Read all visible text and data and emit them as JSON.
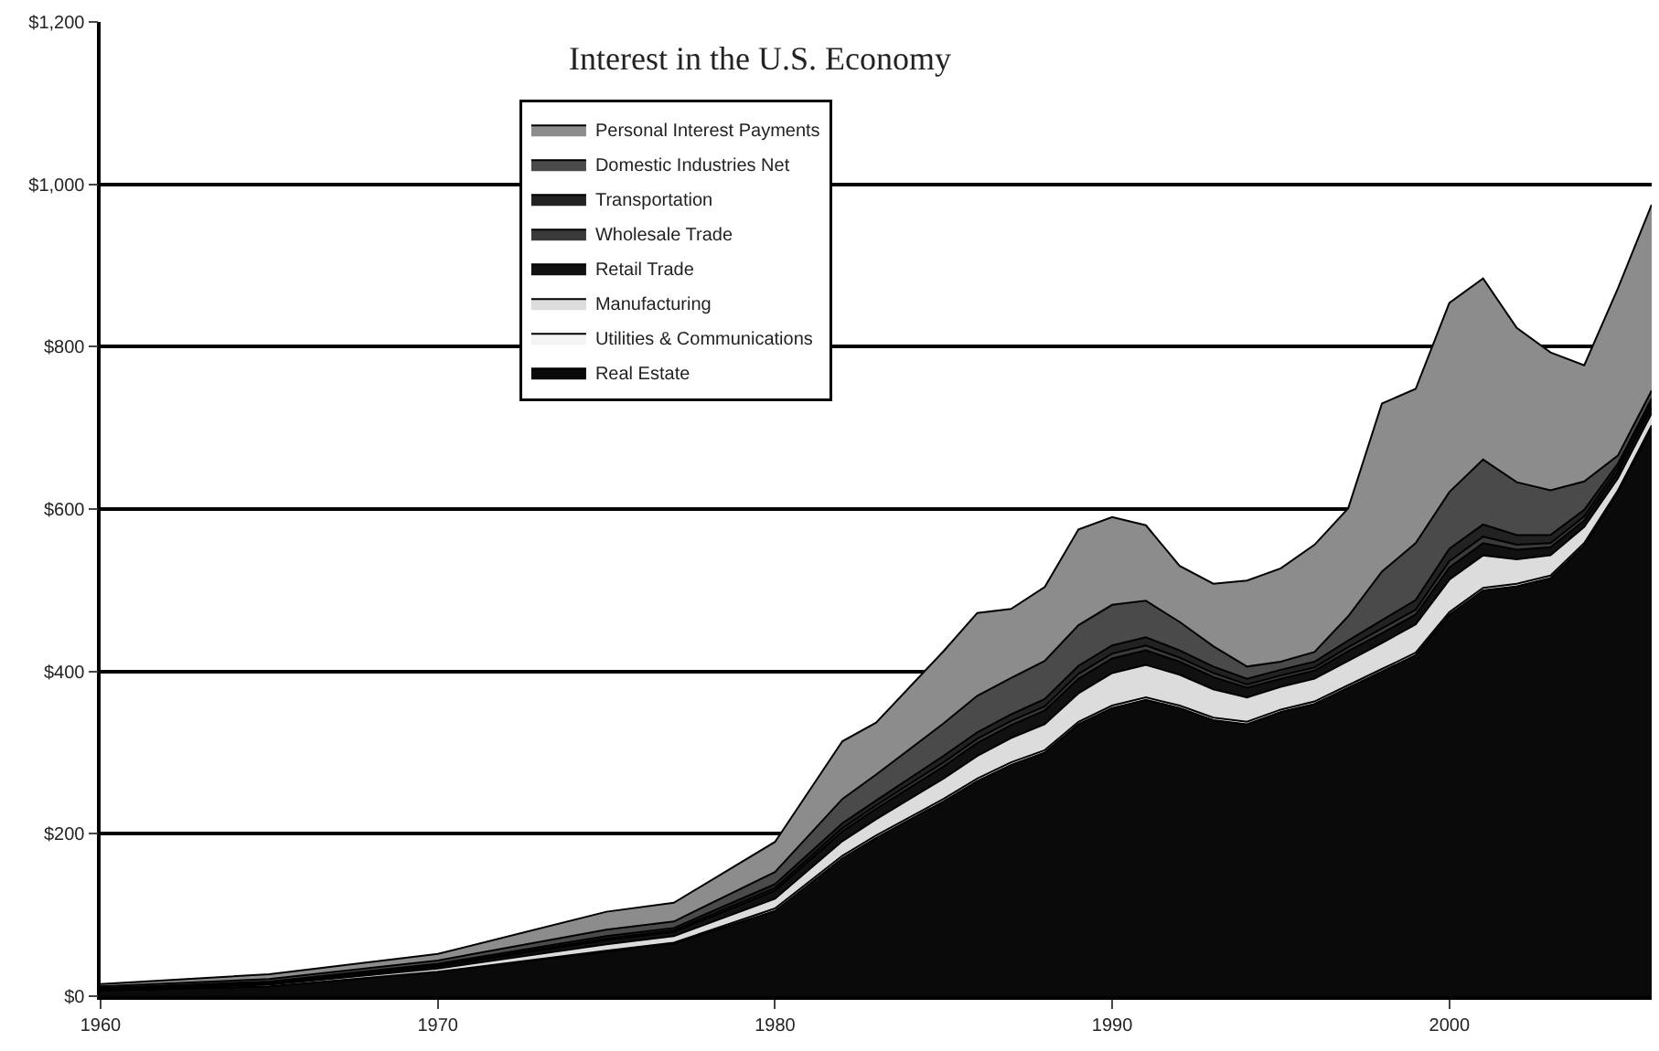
{
  "chart_data": {
    "type": "area",
    "stacked": true,
    "title": "Interest in the U.S. Economy",
    "x": [
      1960,
      1965,
      1970,
      1975,
      1977,
      1980,
      1982,
      1983,
      1985,
      1986,
      1987,
      1988,
      1989,
      1990,
      1991,
      1992,
      1993,
      1994,
      1995,
      1996,
      1997,
      1998,
      1999,
      2000,
      2001,
      2002,
      2003,
      2004,
      2005,
      2006
    ],
    "series": [
      {
        "name": "Real Estate",
        "color": "#0a0a0a",
        "values": [
          7,
          12,
          30,
          55,
          65,
          105,
          170,
          195,
          240,
          265,
          285,
          300,
          335,
          355,
          365,
          355,
          340,
          335,
          350,
          360,
          380,
          400,
          420,
          470,
          500,
          505,
          515,
          555,
          620,
          700
        ]
      },
      {
        "name": "Utilities & Communications",
        "color": "#f4f4f4",
        "values": [
          0,
          0,
          0,
          1,
          1,
          3,
          3,
          3,
          3,
          3,
          3,
          3,
          3,
          3,
          3,
          3,
          3,
          3,
          3,
          3,
          3,
          3,
          3,
          3,
          3,
          3,
          3,
          3,
          3,
          3
        ]
      },
      {
        "name": "Manufacturing",
        "color": "#dcdcdc",
        "values": [
          1,
          2,
          4,
          8,
          8,
          12,
          18,
          20,
          25,
          28,
          30,
          32,
          35,
          40,
          40,
          38,
          35,
          30,
          28,
          28,
          30,
          32,
          35,
          40,
          40,
          30,
          25,
          20,
          15,
          15
        ]
      },
      {
        "name": "Retail Trade",
        "color": "#111111",
        "values": [
          1,
          2,
          3,
          5,
          5,
          10,
          12,
          13,
          15,
          16,
          16,
          17,
          18,
          18,
          18,
          16,
          15,
          12,
          10,
          10,
          12,
          12,
          12,
          15,
          15,
          12,
          10,
          8,
          8,
          8
        ]
      },
      {
        "name": "Wholesale Trade",
        "color": "#3a3a3a",
        "values": [
          0,
          1,
          1,
          2,
          2,
          3,
          4,
          4,
          5,
          5,
          5,
          5,
          6,
          6,
          6,
          5,
          5,
          4,
          4,
          4,
          5,
          6,
          6,
          8,
          8,
          6,
          5,
          5,
          5,
          5
        ]
      },
      {
        "name": "Transportation",
        "color": "#222222",
        "values": [
          1,
          1,
          2,
          3,
          3,
          5,
          6,
          6,
          8,
          8,
          8,
          9,
          10,
          10,
          10,
          9,
          8,
          7,
          7,
          7,
          8,
          10,
          12,
          15,
          15,
          12,
          10,
          8,
          5,
          5
        ]
      },
      {
        "name": "Domestic Industries Net",
        "color": "#4a4a4a",
        "values": [
          2,
          3,
          4,
          8,
          8,
          15,
          30,
          32,
          40,
          45,
          45,
          47,
          50,
          50,
          45,
          35,
          25,
          15,
          10,
          12,
          30,
          60,
          70,
          70,
          80,
          65,
          55,
          35,
          10,
          10
        ]
      },
      {
        "name": "Personal Interest Payments",
        "color": "#8c8c8c",
        "values": [
          3,
          6,
          8,
          22,
          23,
          37,
          71,
          64,
          89,
          102,
          85,
          91,
          118,
          108,
          93,
          69,
          77,
          106,
          115,
          132,
          133,
          207,
          190,
          233,
          223,
          190,
          170,
          143,
          206,
          229
        ]
      }
    ],
    "xlim": [
      1960,
      2006
    ],
    "xticks": [
      1960,
      1970,
      1980,
      1990,
      2000
    ],
    "ylim": [
      0,
      1200
    ],
    "yticks": [
      {
        "value": 0,
        "label": "$0"
      },
      {
        "value": 200,
        "label": "$200"
      },
      {
        "value": 400,
        "label": "$400"
      },
      {
        "value": 600,
        "label": "$600"
      },
      {
        "value": 800,
        "label": "$800"
      },
      {
        "value": 1000,
        "label": "$1,000"
      },
      {
        "value": 1200,
        "label": "$1,200"
      }
    ],
    "grid": "y",
    "legend": "top"
  }
}
